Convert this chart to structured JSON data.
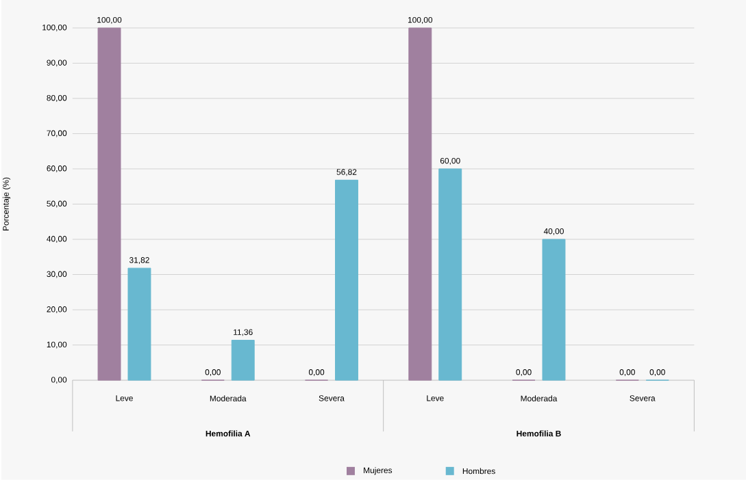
{
  "chart_data": {
    "type": "bar",
    "ylabel": "Porcentaje (%)",
    "categories": [
      "Leve",
      "Moderada",
      "Severa",
      "Leve",
      "Moderada",
      "Severa"
    ],
    "annotations": [
      "Hemofilia A",
      "Hemofilia B"
    ],
    "series": [
      {
        "name": "Mujeres",
        "color": "#a0809f",
        "values": [
          100,
          0,
          0,
          100,
          0,
          0
        ],
        "value_labels": [
          "100,00",
          "0,00",
          "0,00",
          "100,00",
          "0,00",
          "0,00"
        ]
      },
      {
        "name": "Hombres",
        "color": "#68b8d0",
        "values": [
          31.82,
          11.36,
          56.82,
          60,
          40,
          0
        ],
        "value_labels": [
          "31,82",
          "11,36",
          "56,82",
          "60,00",
          "40,00",
          "0,00"
        ]
      }
    ],
    "ylim": [
      0,
      100
    ],
    "yticks": [
      {
        "value": 0,
        "label": "0,00"
      },
      {
        "value": 10,
        "label": "10,00"
      },
      {
        "value": 20,
        "label": "20,00"
      },
      {
        "value": 30,
        "label": "30,00"
      },
      {
        "value": 40,
        "label": "40,00"
      },
      {
        "value": 50,
        "label": "50,00"
      },
      {
        "value": 60,
        "label": "60,00"
      },
      {
        "value": 70,
        "label": "70,00"
      },
      {
        "value": 80,
        "label": "80,00"
      },
      {
        "value": 90,
        "label": "90,00"
      },
      {
        "value": 100,
        "label": "100,00"
      }
    ],
    "grid": "y",
    "legend": "bottom"
  }
}
